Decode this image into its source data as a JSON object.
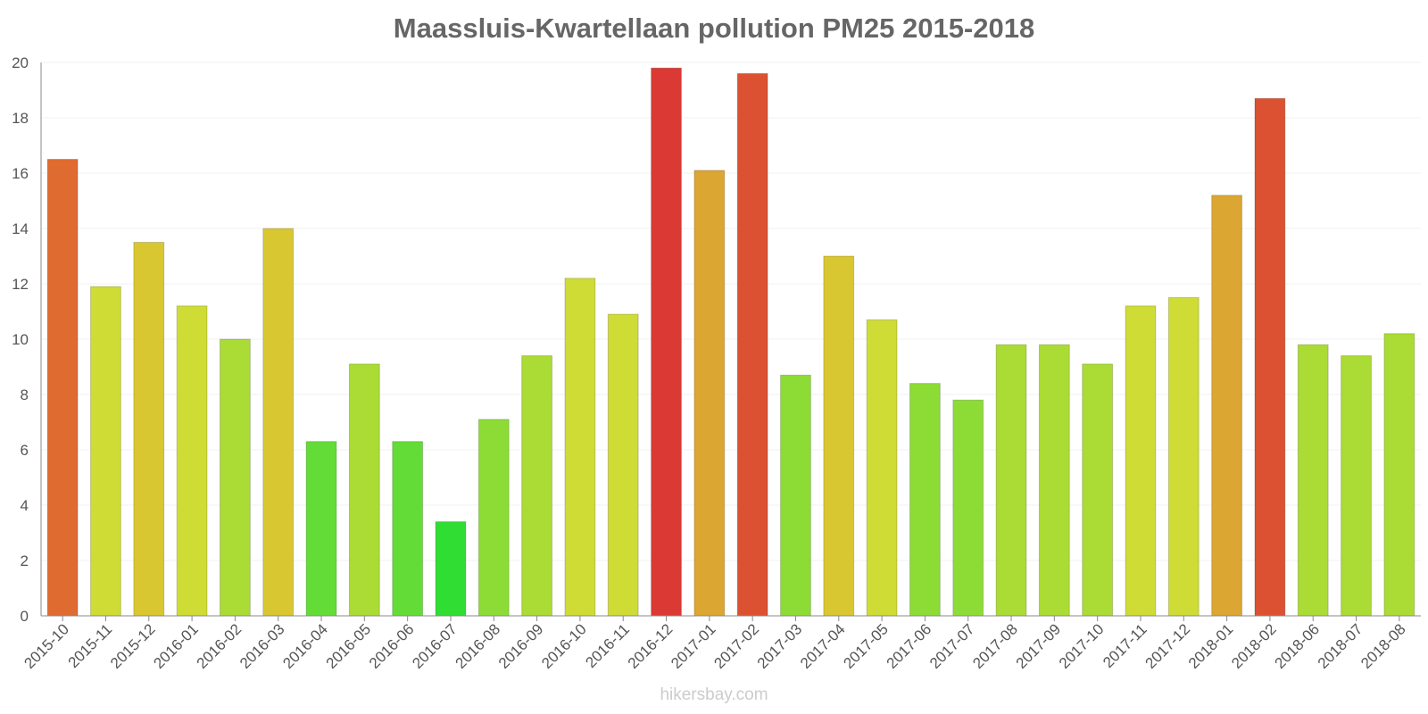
{
  "chart_data": {
    "type": "bar",
    "title": "Maassluis-Kwartellaan pollution PM25 2015-2018",
    "xlabel": "",
    "ylabel": "",
    "ylim": [
      0,
      20
    ],
    "yticks": [
      "0",
      "2",
      "4",
      "6",
      "8",
      "10",
      "12",
      "14",
      "16",
      "18",
      "20"
    ],
    "grid": true,
    "categories": [
      "2015-10",
      "2015-11",
      "2015-12",
      "2016-01",
      "2016-02",
      "2016-03",
      "2016-04",
      "2016-05",
      "2016-06",
      "2016-07",
      "2016-08",
      "2016-09",
      "2016-10",
      "2016-11",
      "2016-12",
      "2017-01",
      "2017-02",
      "2017-03",
      "2017-04",
      "2017-05",
      "2017-06",
      "2017-07",
      "2017-08",
      "2017-09",
      "2017-10",
      "2017-11",
      "2017-12",
      "2018-01",
      "2018-02",
      "2018-06",
      "2018-07",
      "2018-08"
    ],
    "values": [
      16.5,
      11.9,
      13.5,
      11.2,
      10.0,
      14.0,
      6.3,
      9.1,
      6.3,
      3.4,
      7.1,
      9.4,
      12.2,
      10.9,
      19.8,
      16.1,
      19.6,
      8.7,
      13.0,
      10.7,
      8.4,
      7.8,
      9.8,
      9.8,
      9.1,
      11.2,
      11.5,
      15.2,
      18.7,
      9.8,
      9.4,
      10.2
    ],
    "colors": [
      "#e06b30",
      "#cedc35",
      "#d9c732",
      "#cedc35",
      "#abdb35",
      "#d9c732",
      "#63dc38",
      "#abdb35",
      "#63dc38",
      "#2fdd33",
      "#8cdc35",
      "#abdb35",
      "#cedc35",
      "#cedc35",
      "#da3a33",
      "#dba632",
      "#dc5131",
      "#8cdc35",
      "#d9c732",
      "#cedc35",
      "#8cdc35",
      "#8cdc35",
      "#abdb35",
      "#abdb35",
      "#abdb35",
      "#cedc35",
      "#cedc35",
      "#dba632",
      "#dc5131",
      "#abdb35",
      "#abdb35",
      "#abdb35"
    ]
  },
  "footer": {
    "watermark": "hikersbay.com"
  }
}
